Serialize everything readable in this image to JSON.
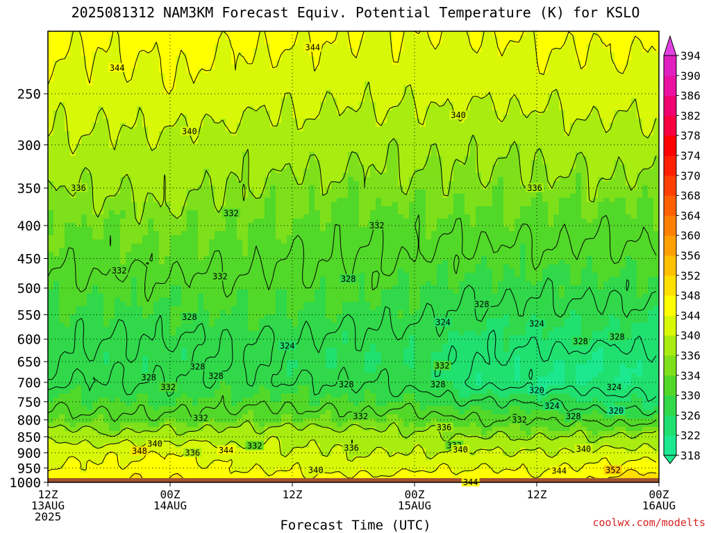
{
  "title": "2025081312 NAM3KM Forecast Equiv. Potential Temperature (K) for KSLO",
  "credit": "coolwx.com/modelts",
  "chart_data": {
    "type": "heatmap",
    "title": "2025081312 NAM3KM Forecast Equiv. Potential Temperature (K) for KSLO",
    "xlabel": "Forecast Time (UTC)",
    "ylabel": "",
    "y_scale": "log pressure",
    "x_range_hours": [
      0,
      60
    ],
    "y_range_hPa": [
      1000,
      200
    ],
    "x_ticks": [
      {
        "hour": 0,
        "lines": [
          "12Z",
          "13AUG",
          "2025"
        ]
      },
      {
        "hour": 12,
        "lines": [
          "00Z",
          "14AUG"
        ]
      },
      {
        "hour": 24,
        "lines": [
          "12Z"
        ]
      },
      {
        "hour": 36,
        "lines": [
          "00Z",
          "15AUG"
        ]
      },
      {
        "hour": 48,
        "lines": [
          "12Z"
        ]
      },
      {
        "hour": 60,
        "lines": [
          "00Z",
          "16AUG"
        ]
      }
    ],
    "y_ticks": [
      250,
      300,
      350,
      400,
      450,
      500,
      550,
      600,
      650,
      700,
      750,
      800,
      850,
      900,
      950,
      1000
    ],
    "grid": true,
    "colorbar": {
      "labels": [
        318,
        322,
        326,
        330,
        334,
        336,
        340,
        344,
        348,
        352,
        356,
        360,
        364,
        368,
        370,
        374,
        378,
        382,
        386,
        390,
        394
      ],
      "colors": [
        "#1ce890",
        "#20e070",
        "#30d84a",
        "#52d828",
        "#7ee01a",
        "#a8ec10",
        "#d8f808",
        "#ffff00",
        "#ffe000",
        "#ffc000",
        "#ffa000",
        "#ff8000",
        "#ff6000",
        "#ff4000",
        "#ff2000",
        "#ff0000",
        "#f80040",
        "#f00070",
        "#ea10a0",
        "#e020c0",
        "#e040e0"
      ],
      "position": "right"
    },
    "contour_interval_K": 4,
    "ground_below_hPa": 985,
    "ground_color": "#a0522d",
    "profile_hours": [
      0,
      6,
      12,
      18,
      24,
      30,
      36,
      42,
      48,
      54,
      60
    ],
    "profile_levels_hPa": [
      1000,
      950,
      900,
      850,
      800,
      750,
      700,
      650,
      600,
      550,
      500,
      450,
      400,
      350,
      300,
      250,
      200
    ],
    "theta_e_K": [
      [
        347,
        344,
        343,
        339,
        334,
        331,
        328,
        328,
        329,
        330,
        331,
        333,
        334,
        336,
        339,
        342,
        345
      ],
      [
        348,
        345,
        343,
        337,
        333,
        330,
        328,
        327,
        328,
        329,
        331,
        333,
        334,
        336,
        339,
        342,
        345
      ],
      [
        349,
        346,
        344,
        338,
        333,
        330,
        328,
        327,
        328,
        330,
        331,
        333,
        335,
        337,
        339,
        343,
        346
      ],
      [
        347,
        344,
        342,
        338,
        334,
        331,
        329,
        328,
        328,
        330,
        331,
        333,
        334,
        336,
        338,
        342,
        345
      ],
      [
        346,
        343,
        341,
        339,
        334,
        331,
        328,
        327,
        328,
        330,
        331,
        332,
        334,
        335,
        338,
        341,
        345
      ],
      [
        346,
        342,
        340,
        338,
        334,
        330,
        328,
        326,
        327,
        329,
        331,
        332,
        333,
        335,
        337,
        341,
        344
      ],
      [
        347,
        343,
        340,
        337,
        334,
        330,
        327,
        326,
        327,
        329,
        330,
        332,
        333,
        335,
        337,
        341,
        344
      ],
      [
        348,
        344,
        341,
        336,
        332,
        328,
        323,
        324,
        325,
        327,
        329,
        331,
        333,
        335,
        337,
        341,
        344
      ],
      [
        346,
        343,
        340,
        336,
        332,
        328,
        322,
        323,
        325,
        327,
        329,
        331,
        333,
        335,
        337,
        341,
        345
      ],
      [
        349,
        345,
        341,
        336,
        331,
        326,
        322,
        322,
        325,
        327,
        329,
        331,
        333,
        335,
        338,
        342,
        345
      ],
      [
        352,
        347,
        342,
        337,
        331,
        325,
        322,
        323,
        325,
        327,
        329,
        331,
        333,
        335,
        338,
        342,
        345
      ]
    ],
    "contour_labels": [
      {
        "value": "344",
        "hour": 41.5,
        "hPa": 1000
      },
      {
        "value": "344",
        "hour": 17.5,
        "hPa": 892
      },
      {
        "value": "340",
        "hour": 10.5,
        "hPa": 872
      },
      {
        "value": "348",
        "hour": 9.0,
        "hPa": 895
      },
      {
        "value": "336",
        "hour": 14.2,
        "hPa": 900
      },
      {
        "value": "332",
        "hour": 20.3,
        "hPa": 878
      },
      {
        "value": "336",
        "hour": 29.8,
        "hPa": 885
      },
      {
        "value": "332",
        "hour": 39.9,
        "hPa": 877
      },
      {
        "value": "340",
        "hour": 40.5,
        "hPa": 890
      },
      {
        "value": "340",
        "hour": 52.6,
        "hPa": 888
      },
      {
        "value": "344",
        "hour": 50.2,
        "hPa": 960
      },
      {
        "value": "352",
        "hour": 55.5,
        "hPa": 958
      },
      {
        "value": "340",
        "hour": 26.3,
        "hPa": 958
      },
      {
        "value": "336",
        "hour": 38.9,
        "hPa": 822
      },
      {
        "value": "332",
        "hour": 15.0,
        "hPa": 795
      },
      {
        "value": "332",
        "hour": 30.7,
        "hPa": 790
      },
      {
        "value": "332",
        "hour": 46.3,
        "hPa": 800
      },
      {
        "value": "328",
        "hour": 51.6,
        "hPa": 790
      },
      {
        "value": "320",
        "hour": 55.8,
        "hPa": 775
      },
      {
        "value": "324",
        "hour": 49.5,
        "hPa": 762
      },
      {
        "value": "320",
        "hour": 48.0,
        "hPa": 720
      },
      {
        "value": "324",
        "hour": 55.6,
        "hPa": 712
      },
      {
        "value": "328",
        "hour": 38.3,
        "hPa": 705
      },
      {
        "value": "328",
        "hour": 29.3,
        "hPa": 705
      },
      {
        "value": "332",
        "hour": 11.8,
        "hPa": 712
      },
      {
        "value": "328",
        "hour": 9.9,
        "hPa": 688
      },
      {
        "value": "332",
        "hour": 38.7,
        "hPa": 660
      },
      {
        "value": "324",
        "hour": 23.5,
        "hPa": 615
      },
      {
        "value": "328",
        "hour": 14.7,
        "hPa": 662
      },
      {
        "value": "328",
        "hour": 16.5,
        "hPa": 685
      },
      {
        "value": "324",
        "hour": 38.8,
        "hPa": 565
      },
      {
        "value": "324",
        "hour": 48.0,
        "hPa": 568
      },
      {
        "value": "328",
        "hour": 52.3,
        "hPa": 605
      },
      {
        "value": "328",
        "hour": 55.9,
        "hPa": 595
      },
      {
        "value": "328",
        "hour": 13.9,
        "hPa": 555
      },
      {
        "value": "328",
        "hour": 42.6,
        "hPa": 530
      },
      {
        "value": "328",
        "hour": 29.5,
        "hPa": 484
      },
      {
        "value": "332",
        "hour": 7.0,
        "hPa": 470
      },
      {
        "value": "332",
        "hour": 16.9,
        "hPa": 480
      },
      {
        "value": "332",
        "hour": 18.0,
        "hPa": 383
      },
      {
        "value": "332",
        "hour": 32.3,
        "hPa": 400
      },
      {
        "value": "336",
        "hour": 3.0,
        "hPa": 350
      },
      {
        "value": "336",
        "hour": 47.8,
        "hPa": 350
      },
      {
        "value": "340",
        "hour": 13.9,
        "hPa": 286
      },
      {
        "value": "340",
        "hour": 40.3,
        "hPa": 270
      },
      {
        "value": "344",
        "hour": 6.8,
        "hPa": 228
      },
      {
        "value": "344",
        "hour": 26.0,
        "hPa": 212
      }
    ]
  }
}
